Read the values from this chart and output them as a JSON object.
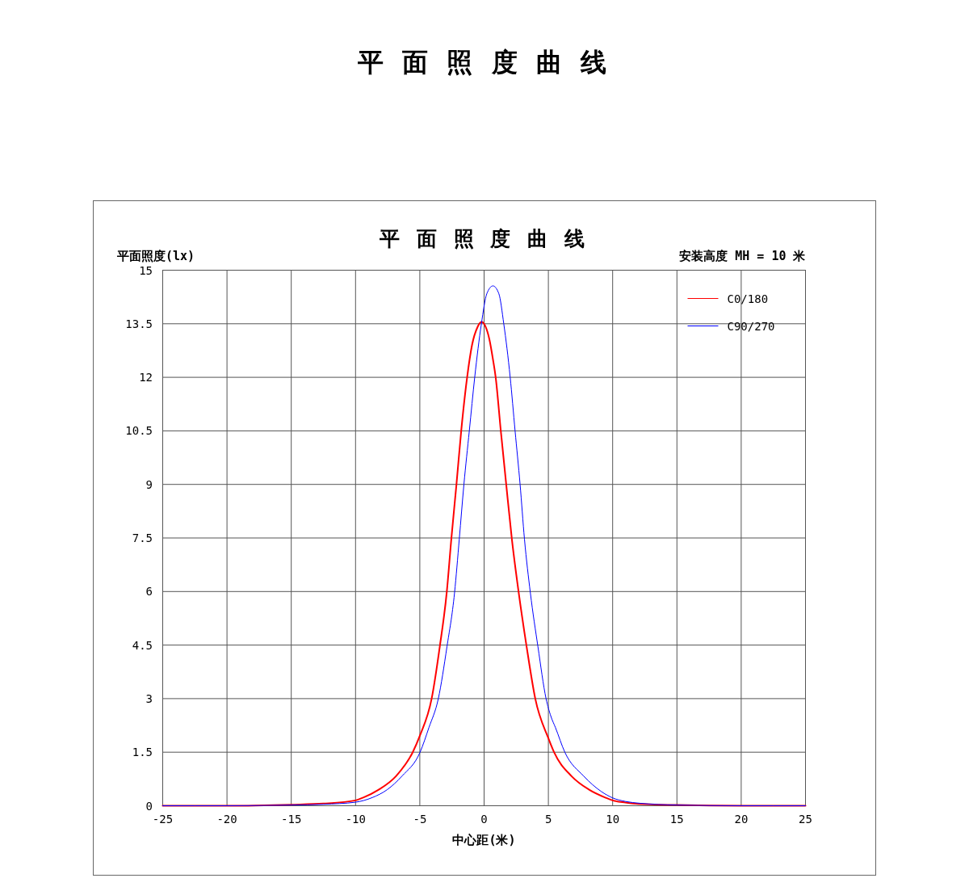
{
  "chart_data": {
    "type": "line",
    "title": "平 面 照 度 曲 线",
    "subtitle": "平 面 照 度 曲 线",
    "xlabel": "中心距(米)",
    "ylabel": "平面照度(lx)",
    "annotations": [
      "安装高度 MH = 10 米"
    ],
    "xlim": [
      -25,
      25
    ],
    "ylim": [
      0,
      15
    ],
    "xticks": [
      -25,
      -20,
      -15,
      -10,
      -5,
      0,
      5,
      10,
      15,
      20,
      25
    ],
    "yticks": [
      0,
      1.5,
      3,
      4.5,
      6,
      7.5,
      9,
      10.5,
      12,
      13.5,
      15
    ],
    "grid": true,
    "legend": "top right",
    "series": [
      {
        "name": "C0/180",
        "color": "#ff0000",
        "x": [
          -25,
          -20,
          -15,
          -12.5,
          -10,
          -9.4,
          -8.2,
          -6.85,
          -5.55,
          -5,
          -4.08,
          -3.45,
          -2.9,
          -2.55,
          -2.15,
          -1.78,
          -1.32,
          -0.94,
          -0.52,
          -0.2,
          0.1,
          0.42,
          0.69,
          0.9,
          1.3,
          1.72,
          2.16,
          2.68,
          3.31,
          3.98,
          5,
          5.44,
          6.8,
          8.17,
          9.42,
          10,
          11,
          12,
          15,
          20,
          25
        ],
        "values": [
          0,
          0,
          0.03,
          0.06,
          0.15,
          0.23,
          0.45,
          0.83,
          1.5,
          1.96,
          3.0,
          4.45,
          6.0,
          7.47,
          9.0,
          10.5,
          12.0,
          12.9,
          13.4,
          13.55,
          13.43,
          13.05,
          12.5,
          12.0,
          10.5,
          9.0,
          7.47,
          6.0,
          4.45,
          3.0,
          1.89,
          1.5,
          0.83,
          0.45,
          0.23,
          0.15,
          0.09,
          0.05,
          0.02,
          0,
          0
        ]
      },
      {
        "name": "C90/270",
        "color": "#0000ff",
        "x": [
          -25,
          -20,
          -15,
          -12.5,
          -10,
          -8.69,
          -7.54,
          -6.39,
          -4.98,
          -4.29,
          -3.56,
          -2.89,
          -2.3,
          -1.93,
          -1.57,
          -1.15,
          -0.73,
          -0.21,
          0.21,
          0.69,
          1.15,
          1.53,
          2.03,
          2.41,
          2.8,
          3.14,
          3.6,
          4.19,
          4.82,
          5.2,
          5.55,
          6.28,
          7.75,
          9.11,
          10,
          11,
          12.1,
          15,
          20,
          25
        ],
        "values": [
          0,
          0,
          0.02,
          0.04,
          0.1,
          0.23,
          0.45,
          0.83,
          1.5,
          2.19,
          3.0,
          4.45,
          5.96,
          7.47,
          9.0,
          10.5,
          12.0,
          13.5,
          14.34,
          14.56,
          14.34,
          13.5,
          12.0,
          10.5,
          9.0,
          7.47,
          5.96,
          4.45,
          3.0,
          2.5,
          2.19,
          1.5,
          0.83,
          0.4,
          0.22,
          0.12,
          0.07,
          0.02,
          0,
          0
        ]
      }
    ]
  }
}
